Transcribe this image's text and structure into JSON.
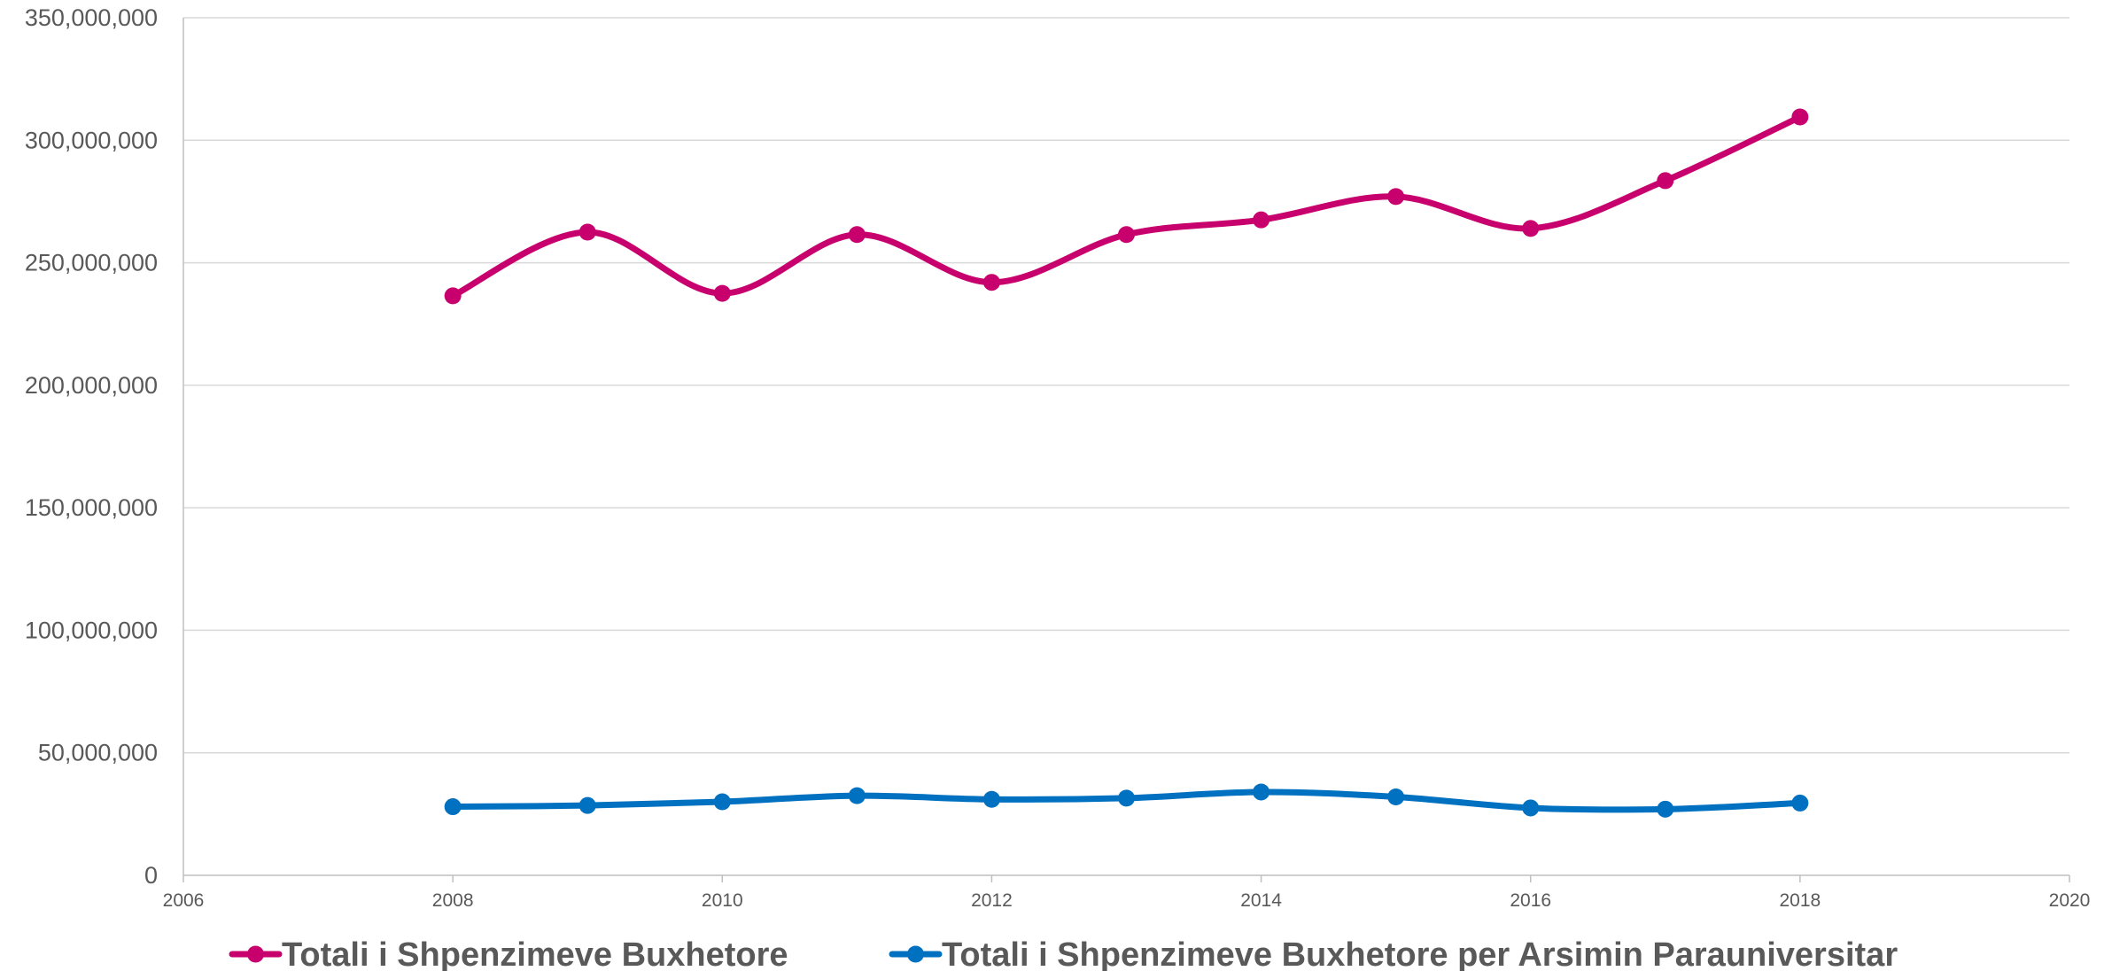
{
  "chart_data": {
    "type": "line",
    "x_ticks": [
      "2006",
      "2008",
      "2010",
      "2012",
      "2014",
      "2016",
      "2018",
      "2020"
    ],
    "y_ticks": [
      "0",
      "50,000,000",
      "100,000,000",
      "150,000,000",
      "200,000,000",
      "250,000,000",
      "300,000,000",
      "350,000,000"
    ],
    "xlim": [
      2006,
      2020
    ],
    "ylim": [
      0,
      350000000
    ],
    "grid": true,
    "legend_position": "bottom",
    "smooth": true,
    "series": [
      {
        "name": "Totali i Shpenzimeve Buxhetore",
        "color": "#C8006E",
        "x": [
          2008,
          2009,
          2010,
          2011,
          2012,
          2013,
          2014,
          2015,
          2016,
          2017,
          2018
        ],
        "values": [
          236500000,
          262500000,
          237500000,
          261500000,
          242000000,
          261500000,
          267500000,
          277000000,
          264000000,
          283500000,
          309500000
        ]
      },
      {
        "name": "Totali i Shpenzimeve Buxhetore per Arsimin Parauniversitar",
        "color": "#0070C0",
        "x": [
          2008,
          2009,
          2010,
          2011,
          2012,
          2013,
          2014,
          2015,
          2016,
          2017,
          2018
        ],
        "values": [
          28000000,
          28500000,
          30000000,
          32500000,
          31000000,
          31500000,
          34000000,
          32000000,
          27500000,
          27000000,
          29500000
        ]
      }
    ]
  }
}
